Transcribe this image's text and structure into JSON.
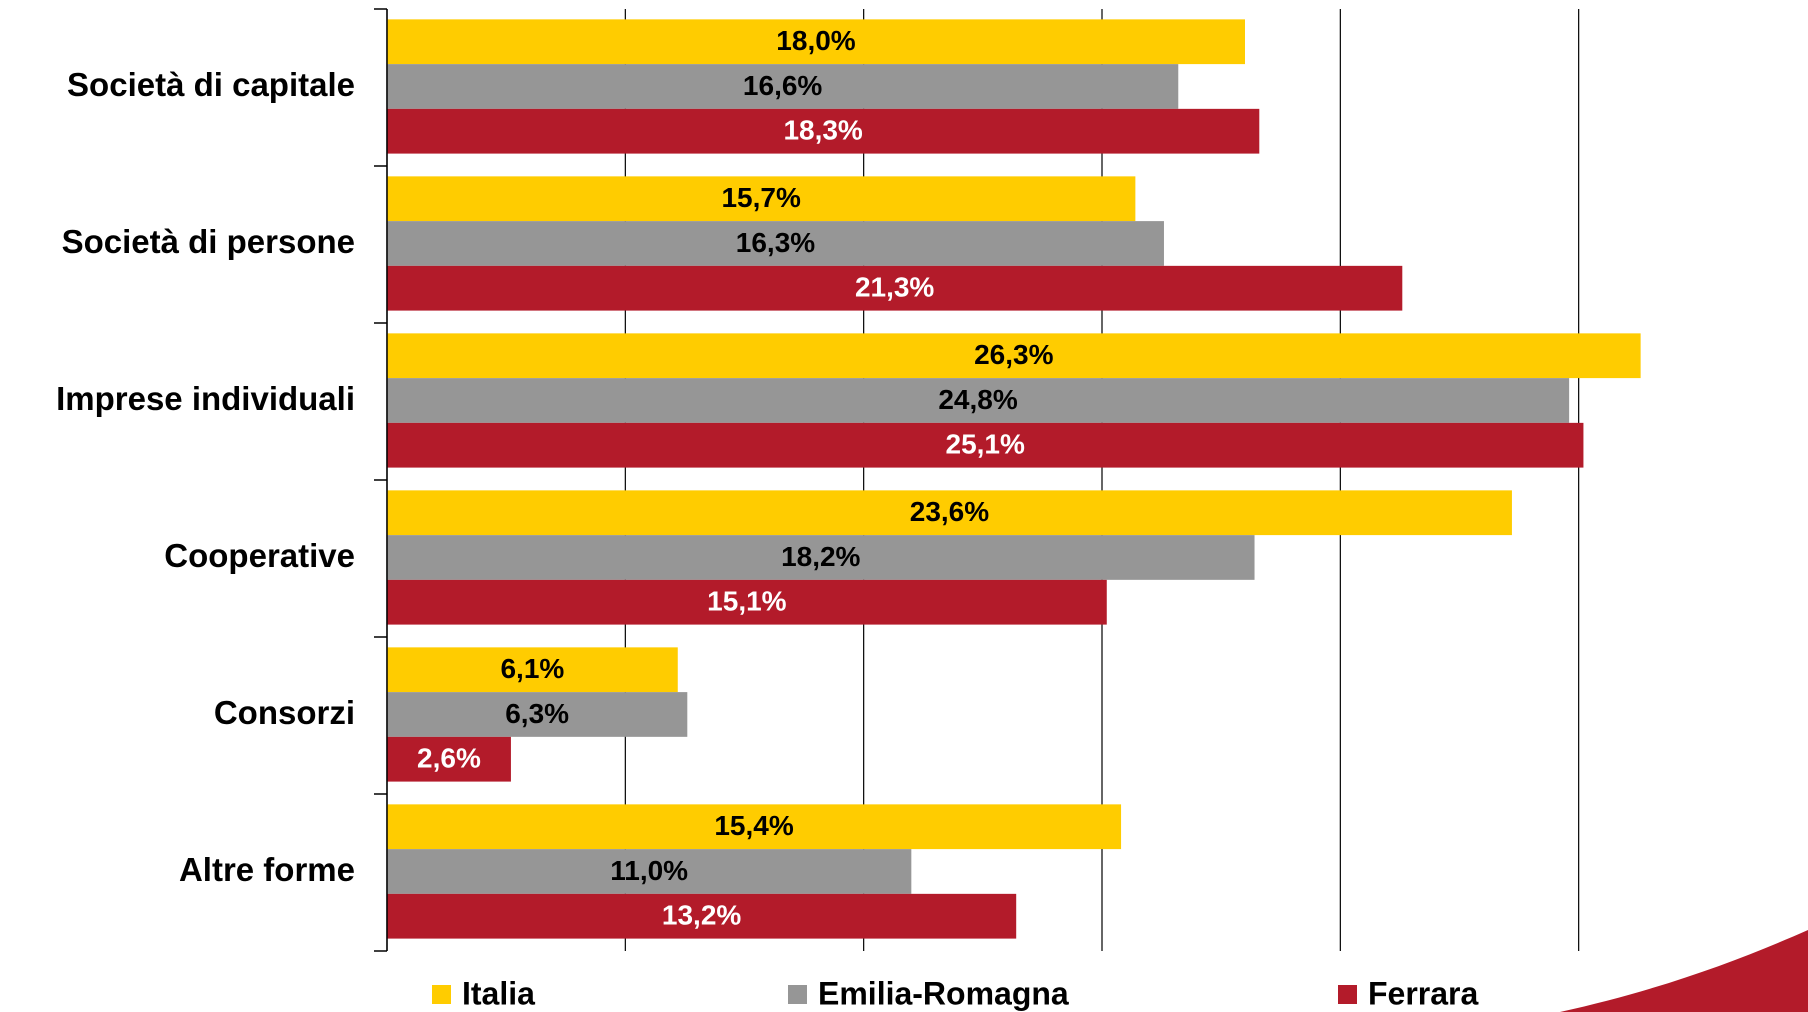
{
  "chart_data": {
    "type": "hbar",
    "categories": [
      "Società di capitale",
      "Società di persone",
      "Imprese individuali",
      "Cooperative",
      "Consorzi",
      "Altre forme"
    ],
    "series": [
      {
        "name": "Italia",
        "color": "#FFCC00",
        "label_color": "#000000",
        "values": [
          18.0,
          15.7,
          26.3,
          23.6,
          6.1,
          15.4
        ],
        "value_labels": [
          "18,0%",
          "15,7%",
          "26,3%",
          "23,6%",
          "6,1%",
          "15,4%"
        ]
      },
      {
        "name": "Emilia-Romagna",
        "color": "#969696",
        "label_color": "#000000",
        "values": [
          16.6,
          16.3,
          24.8,
          18.2,
          6.3,
          11.0
        ],
        "value_labels": [
          "16,6%",
          "16,3%",
          "24,8%",
          "18,2%",
          "6,3%",
          "11,0%"
        ]
      },
      {
        "name": "Ferrara",
        "color": "#B31B2A",
        "label_color": "#FFFFFF",
        "values": [
          18.3,
          21.3,
          25.1,
          15.1,
          2.6,
          13.2
        ],
        "value_labels": [
          "18,3%",
          "21,3%",
          "25,1%",
          "15,1%",
          "2,6%",
          "13,2%"
        ]
      }
    ],
    "xlim": [
      0,
      30
    ],
    "xticks": [
      0,
      5,
      10,
      15,
      20,
      25,
      30
    ],
    "grid": true,
    "legend": "bottom"
  }
}
